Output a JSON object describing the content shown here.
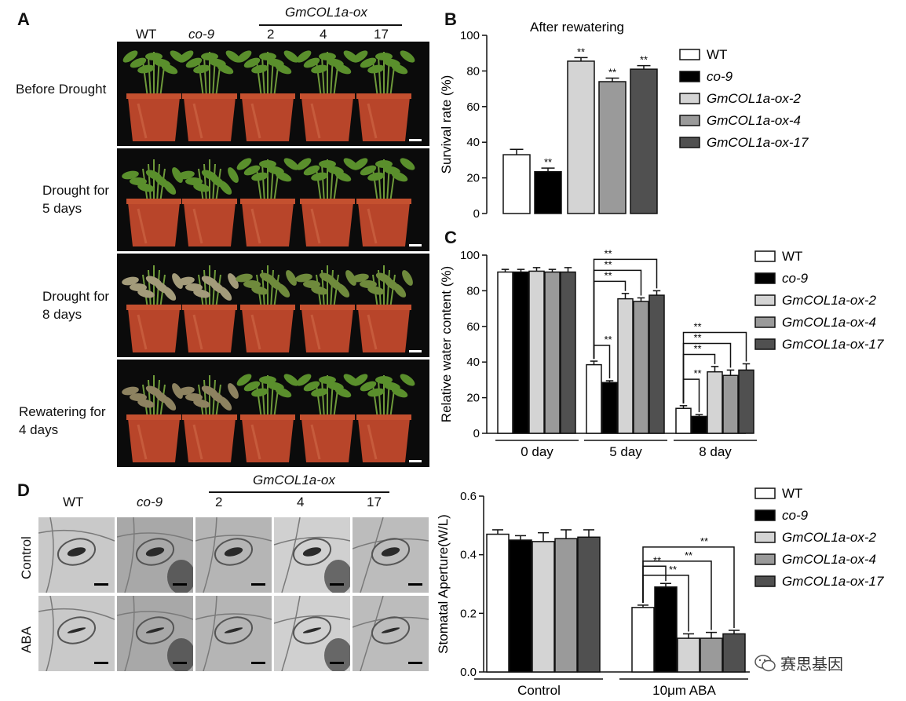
{
  "panels": {
    "A": "A",
    "B": "B",
    "C": "C",
    "D": "D"
  },
  "panel_a": {
    "col_wt": "WT",
    "col_co9": "co-9",
    "group_title": "GmCOL1a-ox",
    "col_2": "2",
    "col_4": "4",
    "col_17": "17",
    "rows": [
      {
        "line1": "Before Drought",
        "line2": ""
      },
      {
        "line1": "Drought for",
        "line2": "5 days"
      },
      {
        "line1": "Drought for",
        "line2": "8 days"
      },
      {
        "line1": "Rewatering for",
        "line2": "4 days"
      }
    ]
  },
  "panel_d": {
    "col_wt": "WT",
    "col_co9": "co-9",
    "group_title": "GmCOL1a-ox",
    "col_2": "2",
    "col_4": "4",
    "col_17": "17",
    "row_control": "Control",
    "row_aba": "ABA"
  },
  "legend": [
    "WT",
    "co-9",
    "GmCOL1a-ox-2",
    "GmCOL1a-ox-4",
    "GmCOL1a-ox-17"
  ],
  "legend_italic": [
    false,
    true,
    true,
    true,
    true
  ],
  "colors": {
    "WT": "#ffffff",
    "co-9": "#000000",
    "ox-2": "#d4d4d4",
    "ox-4": "#9a9a9a",
    "ox-17": "#505050"
  },
  "significance_mark": "**",
  "watermark": "赛思基因",
  "chart_data": [
    {
      "id": "B",
      "type": "bar",
      "title": "After rewatering",
      "ylabel": "Survival rate (%)",
      "xlabel": "",
      "ylim": [
        0,
        100
      ],
      "yticks": [
        0,
        20,
        40,
        60,
        80,
        100
      ],
      "series": [
        {
          "name": "WT",
          "values": [
            33
          ],
          "err": [
            3
          ],
          "sig": [
            ""
          ]
        },
        {
          "name": "co-9",
          "values": [
            23.5
          ],
          "err": [
            2
          ],
          "sig": [
            "**"
          ]
        },
        {
          "name": "GmCOL1a-ox-2",
          "values": [
            85.5
          ],
          "err": [
            2
          ],
          "sig": [
            "**"
          ]
        },
        {
          "name": "GmCOL1a-ox-4",
          "values": [
            74
          ],
          "err": [
            2
          ],
          "sig": [
            "**"
          ]
        },
        {
          "name": "GmCOL1a-ox-17",
          "values": [
            81
          ],
          "err": [
            2
          ],
          "sig": [
            "**"
          ]
        }
      ]
    },
    {
      "id": "C",
      "type": "bar",
      "title": "",
      "ylabel": "Relative water content (%)",
      "xlabel": "",
      "categories": [
        "0 day",
        "5 day",
        "8 day"
      ],
      "ylim": [
        0,
        100
      ],
      "yticks": [
        0,
        20,
        40,
        60,
        80,
        100
      ],
      "series": [
        {
          "name": "WT",
          "values": [
            90.5,
            38.5,
            14
          ],
          "err": [
            1.5,
            2,
            1.5
          ]
        },
        {
          "name": "co-9",
          "values": [
            90.5,
            28.5,
            9.5
          ],
          "err": [
            1.5,
            1,
            1
          ]
        },
        {
          "name": "GmCOL1a-ox-2",
          "values": [
            91,
            75.5,
            34.5
          ],
          "err": [
            2,
            3,
            3
          ]
        },
        {
          "name": "GmCOL1a-ox-4",
          "values": [
            90.5,
            74,
            32.5
          ],
          "err": [
            1.5,
            2,
            3
          ]
        },
        {
          "name": "GmCOL1a-ox-17",
          "values": [
            90.5,
            77.5,
            35.5
          ],
          "err": [
            2.5,
            2.5,
            3.5
          ]
        }
      ],
      "brackets": [
        {
          "category": 1,
          "from": 0,
          "to": 1,
          "label": "**"
        },
        {
          "category": 1,
          "from": 0,
          "to": 2,
          "label": "**"
        },
        {
          "category": 1,
          "from": 0,
          "to": 3,
          "label": "**"
        },
        {
          "category": 1,
          "from": 0,
          "to": 4,
          "label": "**"
        },
        {
          "category": 2,
          "from": 0,
          "to": 1,
          "label": "**"
        },
        {
          "category": 2,
          "from": 0,
          "to": 2,
          "label": "**"
        },
        {
          "category": 2,
          "from": 0,
          "to": 3,
          "label": "**"
        },
        {
          "category": 2,
          "from": 0,
          "to": 4,
          "label": "**"
        }
      ]
    },
    {
      "id": "D",
      "type": "bar",
      "title": "",
      "ylabel": "Stomatal Aperture(W/L)",
      "xlabel": "",
      "categories": [
        "Control",
        "10μm ABA"
      ],
      "ylim": [
        0,
        0.6
      ],
      "yticks": [
        0.0,
        0.2,
        0.4,
        0.6
      ],
      "ytick_labels": [
        "0.0",
        "0.2",
        "0.4",
        "0.6"
      ],
      "series": [
        {
          "name": "WT",
          "values": [
            0.47,
            0.22
          ],
          "err": [
            0.015,
            0.008
          ]
        },
        {
          "name": "co-9",
          "values": [
            0.45,
            0.29
          ],
          "err": [
            0.015,
            0.012
          ]
        },
        {
          "name": "GmCOL1a-ox-2",
          "values": [
            0.445,
            0.115
          ],
          "err": [
            0.03,
            0.015
          ]
        },
        {
          "name": "GmCOL1a-ox-4",
          "values": [
            0.455,
            0.115
          ],
          "err": [
            0.03,
            0.02
          ]
        },
        {
          "name": "GmCOL1a-ox-17",
          "values": [
            0.46,
            0.13
          ],
          "err": [
            0.025,
            0.012
          ]
        }
      ],
      "brackets": [
        {
          "category": 1,
          "from": 0,
          "to": 1,
          "label": "**"
        },
        {
          "category": 1,
          "from": 0,
          "to": 2,
          "label": "**"
        },
        {
          "category": 1,
          "from": 0,
          "to": 3,
          "label": "**"
        },
        {
          "category": 1,
          "from": 0,
          "to": 4,
          "label": "**"
        }
      ]
    }
  ]
}
